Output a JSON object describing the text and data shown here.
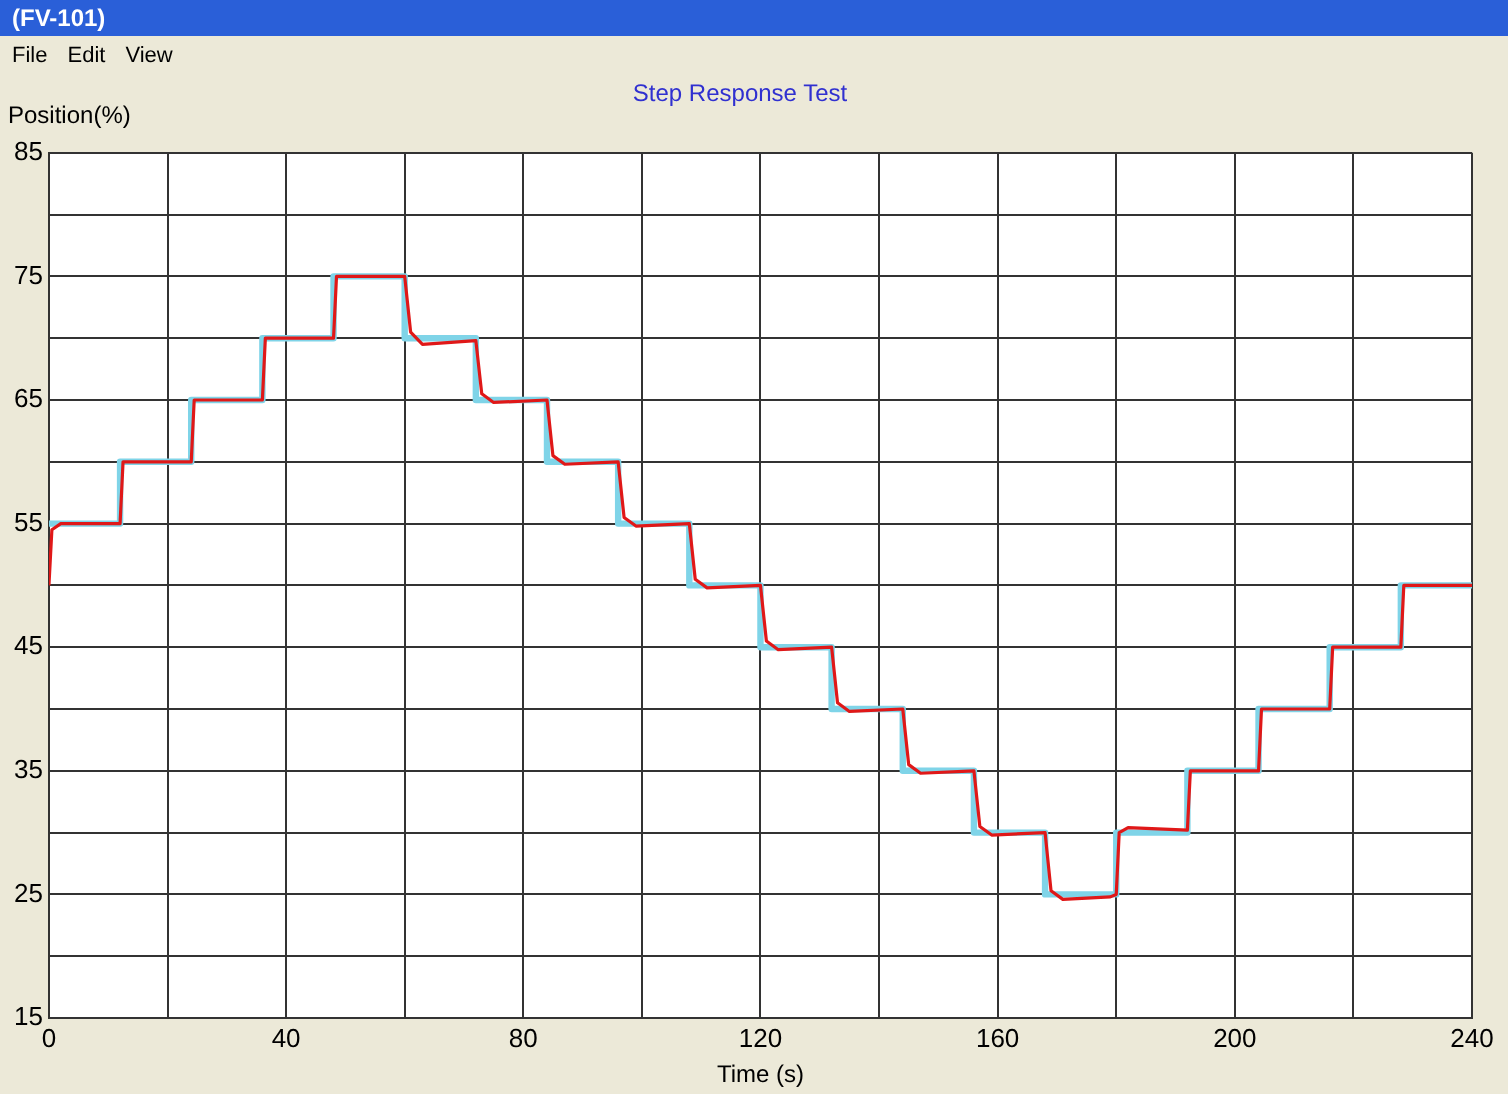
{
  "chart_data": {
    "type": "line",
    "title": "Step Response Test",
    "xlabel": "Time (s)",
    "ylabel": "Position(%)",
    "annotations": [
      "File",
      "Edit",
      "View",
      "(FV-101)"
    ],
    "xlim": [
      0,
      240
    ],
    "xticks": [
      0,
      {
        "value": 20,
        "label": null
      },
      40,
      {
        "value": 60,
        "label": null
      },
      80,
      {
        "value": 100,
        "label": null
      },
      120,
      {
        "value": 140,
        "label": null
      },
      160,
      {
        "value": 180,
        "label": null
      },
      200,
      {
        "value": 220,
        "label": null
      },
      240
    ],
    "ylim": [
      15,
      85
    ],
    "yticks": [
      15,
      {
        "value": 20,
        "label": null
      },
      25,
      {
        "value": 30,
        "label": null
      },
      35,
      {
        "value": 40,
        "label": null
      },
      45,
      {
        "value": 50,
        "label": null
      },
      55,
      {
        "value": 60,
        "label": null
      },
      65,
      {
        "value": 70,
        "label": null
      },
      75,
      {
        "value": 80,
        "label": null
      },
      85
    ],
    "grid": true,
    "legend": false,
    "marker": "none",
    "line_style": "solid",
    "series": [
      {
        "type": "line",
        "color": "#e01818",
        "x": [
          0,
          0.5,
          2,
          12,
          12.5,
          24,
          24.5,
          36,
          36.5,
          48,
          48.5,
          60,
          61,
          63,
          72,
          73,
          75,
          84,
          85,
          87,
          96,
          97,
          99,
          108,
          109,
          111,
          120,
          121,
          123,
          132,
          133,
          135,
          144,
          145,
          147,
          156,
          157,
          159,
          168,
          169,
          171,
          179,
          180,
          180.5,
          182,
          192,
          192.5,
          204,
          204.5,
          216,
          216.5,
          228,
          228.5,
          240
        ],
        "values": [
          50,
          54.5,
          55,
          55,
          60,
          60,
          65,
          65,
          70,
          70,
          75,
          75,
          70.5,
          69.5,
          69.8,
          65.5,
          64.8,
          65,
          60.5,
          59.8,
          60,
          55.5,
          54.8,
          55,
          50.5,
          49.8,
          50,
          45.5,
          44.8,
          45,
          40.5,
          39.8,
          40,
          35.5,
          34.8,
          35,
          30.5,
          29.8,
          30,
          25.3,
          24.6,
          24.8,
          25,
          30,
          30.4,
          30.2,
          35,
          35,
          40,
          40,
          45,
          45,
          50,
          50
        ]
      },
      {
        "type": "step",
        "color": "#7fd4e8",
        "x": [
          0,
          12,
          24,
          36,
          48,
          60,
          72,
          84,
          96,
          108,
          120,
          132,
          144,
          156,
          168,
          180,
          192,
          204,
          216,
          228,
          240
        ],
        "values": [
          55,
          60,
          65,
          70,
          75,
          70,
          65,
          60,
          55,
          50,
          45,
          40,
          35,
          30,
          25,
          30,
          35,
          40,
          45,
          50,
          50
        ]
      }
    ]
  }
}
